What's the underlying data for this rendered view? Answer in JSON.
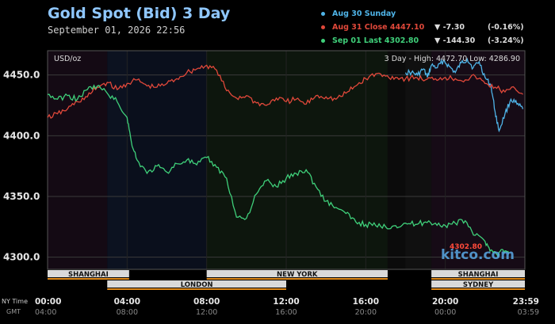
{
  "header": {
    "title": "Gold Spot (Bid) 3 Day",
    "subtitle": "September 01, 2026 22:56"
  },
  "legend": [
    {
      "label": "Aug 30 Sunday",
      "color": "#4fb4e8",
      "change": "",
      "percent": ""
    },
    {
      "label": "Aug 31 Close 4447.10",
      "color": "#e0483a",
      "change": "▼ -7.30",
      "percent": "(-0.16%)"
    },
    {
      "label": "Sep 01 Last   4302.80",
      "color": "#3fd07a",
      "change": "▼ -144.30",
      "percent": "(-3.24%)"
    }
  ],
  "plot_header": {
    "units": "USD/oz",
    "range": "3 Day - High: 4472.70  Low: 4286.90"
  },
  "watermark": "kitco.com",
  "last_price_label": "4302.80",
  "sessions": {
    "upper": [
      {
        "label": "SHANGHAI",
        "start": 0,
        "end": 4.1
      },
      {
        "label": "NEW YORK",
        "start": 8,
        "end": 17.1
      },
      {
        "label": "SHANGHAI",
        "start": 19.3,
        "end": 24
      }
    ],
    "lower": [
      {
        "label": "LONDON",
        "start": 3,
        "end": 12
      },
      {
        "label": "SYDNEY",
        "start": 19.3,
        "end": 24
      }
    ]
  },
  "time_axis": {
    "ny_label": "NY Time",
    "gmt_label": "GMT",
    "ny_ticks": [
      "00:00",
      "04:00",
      "08:00",
      "12:00",
      "16:00",
      "20:00",
      "23:59"
    ],
    "gmt_ticks": [
      "04:00",
      "08:00",
      "12:00",
      "16:00",
      "20:00",
      "00:00",
      "03:59"
    ]
  },
  "chart_data": {
    "type": "line",
    "title": "Gold Spot (Bid) 3 Day",
    "ylabel": "USD/oz",
    "xlabel": "NY Time",
    "xlim": [
      0,
      24
    ],
    "ylim": [
      4290,
      4470
    ],
    "yticks": [
      4300.0,
      4350.0,
      4400.0,
      4450.0
    ],
    "grid": true,
    "legend_position": "top-right",
    "series": [
      {
        "name": "Aug 30 Sunday",
        "color": "#4fb4e8",
        "x": [
          18.0,
          18.3,
          18.6,
          18.9,
          19.1,
          19.3,
          19.6,
          19.9,
          20.2,
          20.5,
          20.8,
          21.1,
          21.4,
          21.7,
          22.0,
          22.3,
          22.5,
          22.7,
          23.0,
          23.3,
          23.6,
          23.9
        ],
        "y": [
          4452,
          4452,
          4450,
          4455,
          4448,
          4458,
          4456,
          4462,
          4457,
          4452,
          4460,
          4463,
          4456,
          4461,
          4448,
          4441,
          4420,
          4404,
          4418,
          4430,
          4426,
          4422
        ]
      },
      {
        "name": "Aug 31 Close 4447.10",
        "color": "#e0483a",
        "x": [
          0,
          0.5,
          1,
          1.5,
          2,
          2.5,
          3,
          3.5,
          4,
          4.5,
          5,
          5.5,
          6,
          6.5,
          7,
          7.5,
          8,
          8.5,
          9,
          9.5,
          10,
          10.5,
          11,
          11.5,
          12,
          12.5,
          13,
          13.5,
          14,
          14.5,
          15,
          15.5,
          16,
          16.5,
          17,
          17.5,
          18,
          18.5,
          19,
          19.5,
          20,
          20.5,
          21,
          21.5,
          22,
          22.5,
          23,
          23.5,
          23.9
        ],
        "y": [
          4415,
          4418,
          4422,
          4428,
          4432,
          4440,
          4444,
          4438,
          4443,
          4446,
          4441,
          4440,
          4443,
          4447,
          4452,
          4455,
          4458,
          4454,
          4437,
          4431,
          4433,
          4427,
          4425,
          4431,
          4428,
          4430,
          4426,
          4433,
          4432,
          4430,
          4435,
          4441,
          4447,
          4451,
          4449,
          4448,
          4447,
          4448,
          4446,
          4447,
          4448,
          4447,
          4446,
          4449,
          4443,
          4440,
          4436,
          4439,
          4434
        ]
      },
      {
        "name": "Sep 01 Last 4302.80",
        "color": "#3fd07a",
        "x": [
          0,
          0.5,
          1,
          1.5,
          2,
          2.5,
          3,
          3.5,
          4,
          4.2,
          4.5,
          5,
          5.5,
          6,
          6.5,
          7,
          7.5,
          8,
          8.5,
          9,
          9.5,
          10,
          10.5,
          11,
          11.5,
          12,
          12.5,
          13,
          13.5,
          14,
          14.5,
          15,
          15.5,
          16,
          16.5,
          17,
          17.5,
          18,
          18.5,
          19,
          19.5,
          20,
          20.5,
          21,
          21.5,
          22,
          22.3,
          22.6,
          22.9,
          23.2
        ],
        "y": [
          4434,
          4430,
          4433,
          4430,
          4438,
          4441,
          4435,
          4428,
          4415,
          4396,
          4380,
          4369,
          4375,
          4370,
          4377,
          4380,
          4376,
          4382,
          4374,
          4365,
          4333,
          4332,
          4352,
          4363,
          4358,
          4365,
          4369,
          4372,
          4358,
          4346,
          4341,
          4336,
          4329,
          4327,
          4326,
          4325,
          4326,
          4328,
          4327,
          4329,
          4328,
          4326,
          4328,
          4330,
          4318,
          4313,
          4306,
          4302,
          4306,
          4303
        ]
      }
    ]
  },
  "colors": {
    "title": "#8fc7ff",
    "plot_bg": "#050505",
    "grid": "#3a3a3a",
    "session_bar": "#d9d9d9",
    "session_line": "#e08a1a",
    "watermark": "#5aa9e6"
  }
}
